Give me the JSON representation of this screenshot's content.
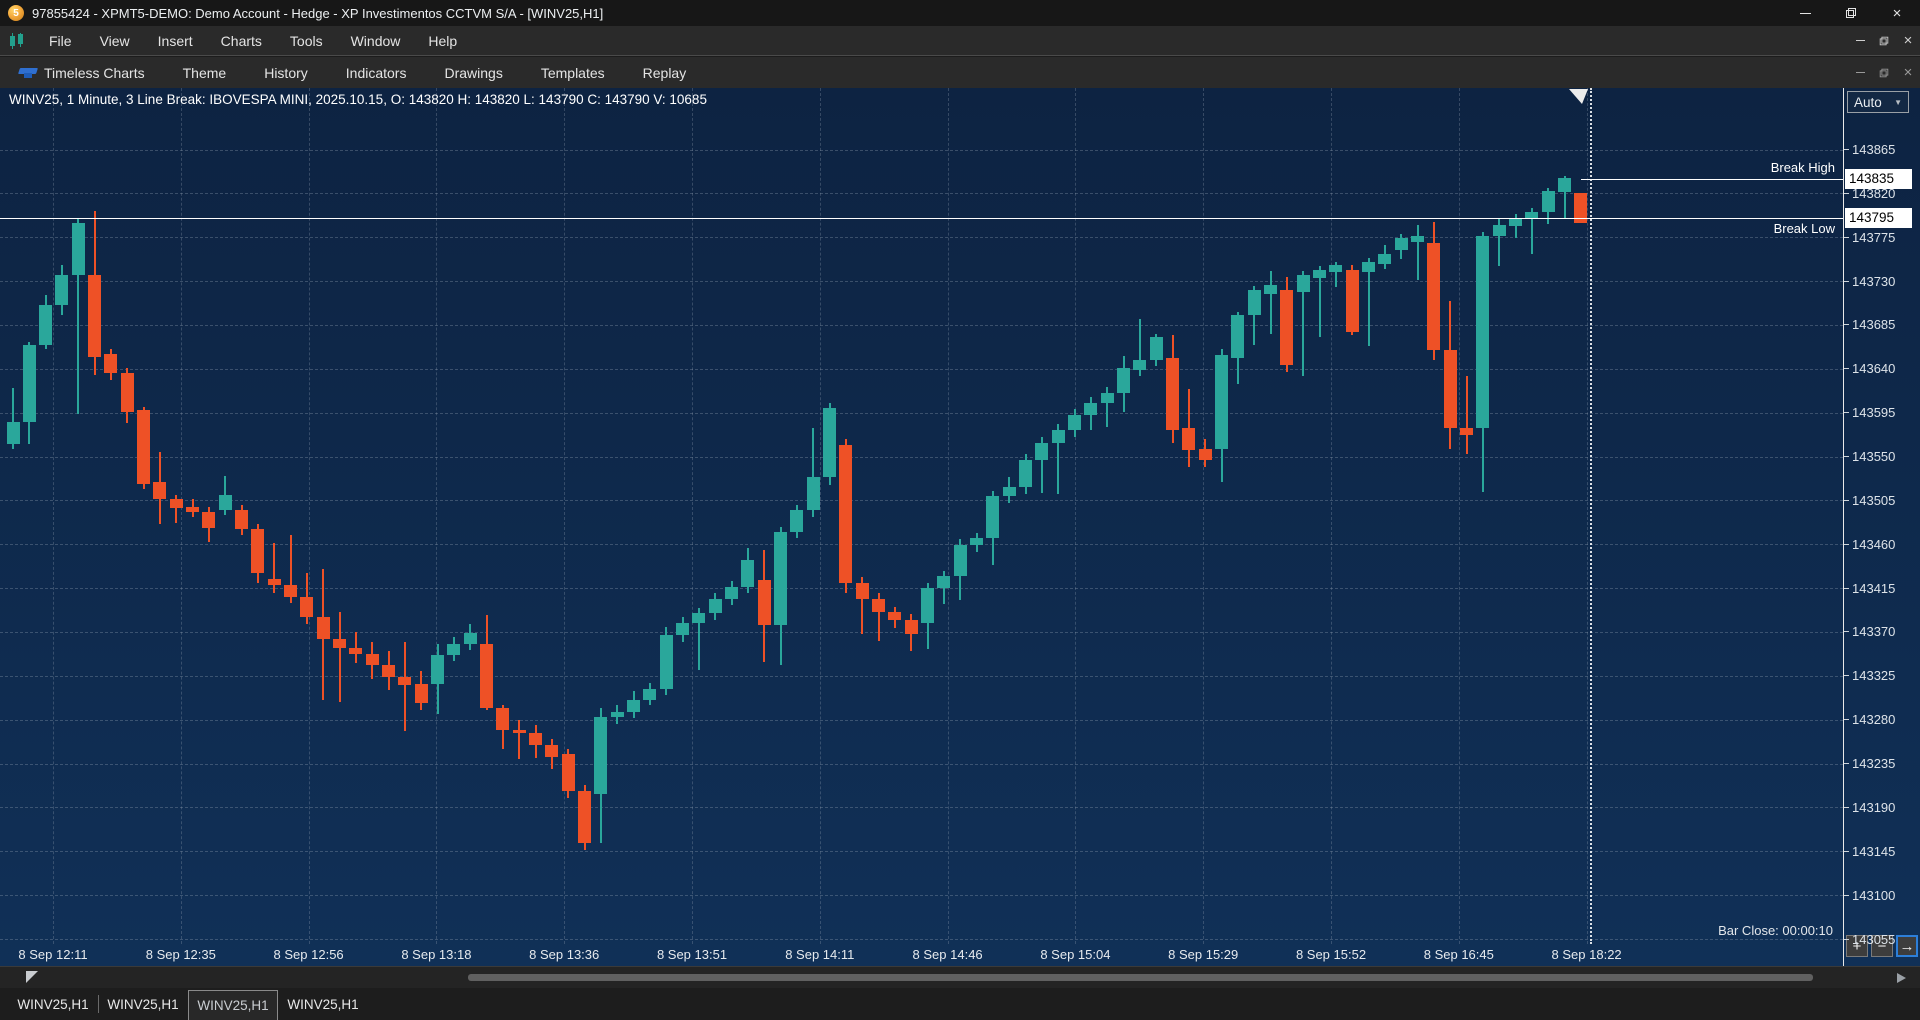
{
  "window": {
    "title": "97855424 - XPMT5-DEMO: Demo Account - Hedge - XP Investimentos CCTVM S/A - [WINV25,H1]",
    "logo_text": "5"
  },
  "menubar": {
    "items": [
      "File",
      "View",
      "Insert",
      "Charts",
      "Tools",
      "Window",
      "Help"
    ]
  },
  "toolbar": {
    "items": [
      "Timeless Charts",
      "Theme",
      "History",
      "Indicators",
      "Drawings",
      "Templates",
      "Replay"
    ]
  },
  "chart": {
    "info_line": "WINV25, 1 Minute, 3 Line Break: IBOVESPA MINI, 2025.10.15, O: 143820 H: 143820 L: 143790 C: 143790 V: 10685",
    "bar_close": "Bar Close: 00:00:10",
    "auto_label": "Auto",
    "axis_buttons": [
      "+",
      "−",
      "→"
    ]
  },
  "chart_data": {
    "type": "candlestick",
    "symbol": "WINV25",
    "title": "WINV25, 1 Minute, 3 Line Break: IBOVESPA MINI",
    "date": "2025.10.15",
    "last_bar": {
      "open": 143820,
      "high": 143820,
      "low": 143790,
      "close": 143790,
      "volume": 10685
    },
    "colors": {
      "up": "#2aa79b",
      "down": "#ee5126",
      "grid": "#94a2b4",
      "level_line": "#ffffff"
    },
    "price_axis": {
      "ticks": [
        143865,
        143820,
        143775,
        143730,
        143685,
        143640,
        143595,
        143550,
        143505,
        143460,
        143415,
        143370,
        143325,
        143280,
        143235,
        143190,
        143145,
        143100,
        143055
      ]
    },
    "special_levels": [
      {
        "price": 143835,
        "label": "Break High",
        "label_side": "above",
        "line_start_frac": 0.858
      },
      {
        "price": 143795,
        "label": "Break Low",
        "label_side": "below",
        "line_start_frac": 0.0
      }
    ],
    "time_ticks": [
      "8 Sep 12:11",
      "8 Sep 12:35",
      "8 Sep 12:56",
      "8 Sep 13:18",
      "8 Sep 13:36",
      "8 Sep 13:51",
      "8 Sep 14:11",
      "8 Sep 14:46",
      "8 Sep 15:04",
      "8 Sep 15:29",
      "8 Sep 15:52",
      "8 Sep 16:45",
      "8 Sep 18:22"
    ],
    "bars": [
      [
        143563,
        143620,
        143558,
        143585
      ],
      [
        143585,
        143668,
        143563,
        143664
      ],
      [
        143664,
        143716,
        143660,
        143705
      ],
      [
        143705,
        143746,
        143695,
        143736
      ],
      [
        143736,
        143795,
        143594,
        143790
      ],
      [
        143736,
        143802,
        143634,
        143652
      ],
      [
        143655,
        143660,
        143629,
        143636
      ],
      [
        143636,
        143641,
        143584,
        143596
      ],
      [
        143598,
        143601,
        143517,
        143522
      ],
      [
        143524,
        143555,
        143481,
        143506
      ],
      [
        143506,
        143511,
        143482,
        143497
      ],
      [
        143498,
        143506,
        143488,
        143493
      ],
      [
        143493,
        143498,
        143462,
        143477
      ],
      [
        143495,
        143530,
        143490,
        143511
      ],
      [
        143495,
        143500,
        143469,
        143476
      ],
      [
        143476,
        143481,
        143420,
        143430
      ],
      [
        143424,
        143461,
        143410,
        143418
      ],
      [
        143418,
        143470,
        143400,
        143406
      ],
      [
        143406,
        143430,
        143378,
        143385
      ],
      [
        143385,
        143435,
        143300,
        143363
      ],
      [
        143363,
        143390,
        143298,
        143354
      ],
      [
        143354,
        143370,
        143338,
        143347
      ],
      [
        143347,
        143360,
        143322,
        143336
      ],
      [
        143336,
        143350,
        143310,
        143324
      ],
      [
        143324,
        143360,
        143268,
        143316
      ],
      [
        143317,
        143330,
        143290,
        143297
      ],
      [
        143317,
        143358,
        143286,
        143346
      ],
      [
        143346,
        143365,
        143340,
        143358
      ],
      [
        143358,
        143378,
        143352,
        143369
      ],
      [
        143358,
        143387,
        143290,
        143292
      ],
      [
        143292,
        143295,
        143250,
        143269
      ],
      [
        143269,
        143280,
        143240,
        143266
      ],
      [
        143266,
        143275,
        143241,
        143254
      ],
      [
        143254,
        143260,
        143229,
        143242
      ],
      [
        143245,
        143250,
        143200,
        143207
      ],
      [
        143207,
        143213,
        143146,
        143153
      ],
      [
        143204,
        143292,
        143153,
        143283
      ],
      [
        143283,
        143295,
        143276,
        143288
      ],
      [
        143288,
        143309,
        143282,
        143300
      ],
      [
        143300,
        143318,
        143295,
        143311
      ],
      [
        143311,
        143375,
        143305,
        143367
      ],
      [
        143367,
        143385,
        143360,
        143379
      ],
      [
        143379,
        143395,
        143331,
        143389
      ],
      [
        143389,
        143410,
        143382,
        143404
      ],
      [
        143404,
        143422,
        143398,
        143416
      ],
      [
        143416,
        143456,
        143410,
        143444
      ],
      [
        143423,
        143454,
        143339,
        143377
      ],
      [
        143377,
        143478,
        143336,
        143473
      ],
      [
        143473,
        143500,
        143466,
        143495
      ],
      [
        143495,
        143579,
        143488,
        143529
      ],
      [
        143529,
        143605,
        143521,
        143600
      ],
      [
        143562,
        143568,
        143410,
        143420
      ],
      [
        143420,
        143426,
        143368,
        143404
      ],
      [
        143404,
        143410,
        143361,
        143390
      ],
      [
        143390,
        143396,
        143374,
        143382
      ],
      [
        143382,
        143388,
        143350,
        143368
      ],
      [
        143379,
        143420,
        143353,
        143415
      ],
      [
        143415,
        143433,
        143399,
        143427
      ],
      [
        143427,
        143465,
        143403,
        143459
      ],
      [
        143459,
        143472,
        143452,
        143466
      ],
      [
        143466,
        143515,
        143439,
        143509
      ],
      [
        143509,
        143529,
        143502,
        143519
      ],
      [
        143519,
        143553,
        143512,
        143546
      ],
      [
        143546,
        143570,
        143513,
        143564
      ],
      [
        143564,
        143583,
        143512,
        143577
      ],
      [
        143577,
        143599,
        143570,
        143593
      ],
      [
        143593,
        143611,
        143577,
        143605
      ],
      [
        143605,
        143621,
        143580,
        143615
      ],
      [
        143615,
        143653,
        143596,
        143641
      ],
      [
        143639,
        143691,
        143633,
        143649
      ],
      [
        143649,
        143676,
        143643,
        143673
      ],
      [
        143651,
        143675,
        143564,
        143577
      ],
      [
        143579,
        143619,
        143539,
        143557
      ],
      [
        143558,
        143568,
        143539,
        143546
      ],
      [
        143558,
        143660,
        143524,
        143654
      ],
      [
        143651,
        143698,
        143624,
        143695
      ],
      [
        143695,
        143725,
        143664,
        143721
      ],
      [
        143717,
        143740,
        143676,
        143726
      ],
      [
        143721,
        143734,
        143637,
        143644
      ],
      [
        143719,
        143740,
        143633,
        143736
      ],
      [
        143733,
        143745,
        143673,
        143741
      ],
      [
        143739,
        143750,
        143724,
        143746
      ],
      [
        143741,
        143746,
        143675,
        143678
      ],
      [
        143739,
        143754,
        143663,
        143750
      ],
      [
        143748,
        143767,
        143742,
        143758
      ],
      [
        143762,
        143778,
        143753,
        143774
      ],
      [
        143770,
        143788,
        143731,
        143776
      ],
      [
        143769,
        143791,
        143649,
        143659
      ],
      [
        143659,
        143710,
        143558,
        143579
      ],
      [
        143579,
        143633,
        143553,
        143572
      ],
      [
        143579,
        143780,
        143514,
        143776
      ],
      [
        143776,
        143795,
        143745,
        143788
      ],
      [
        143787,
        143799,
        143774,
        143795
      ],
      [
        143795,
        143805,
        143758,
        143801
      ],
      [
        143801,
        143826,
        143789,
        143822
      ],
      [
        143821,
        143838,
        143795,
        143836
      ],
      [
        143820,
        143820,
        143790,
        143790
      ]
    ]
  },
  "tabs": {
    "items": [
      "WINV25,H1",
      "WINV25,H1",
      "WINV25,H1",
      "WINV25,H1"
    ],
    "active_index": 2
  }
}
